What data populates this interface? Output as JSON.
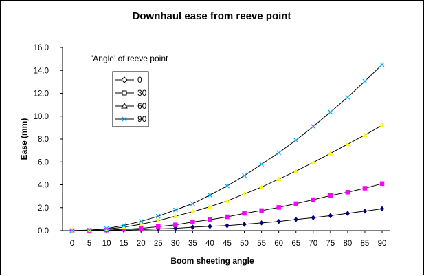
{
  "chart_data": {
    "type": "line",
    "title": "Downhaul ease from reeve point",
    "xlabel": "Boom sheeting angle",
    "ylabel": "Ease (mm)",
    "xlim": [
      0,
      90
    ],
    "ylim": [
      0,
      16
    ],
    "x_ticks": [
      "0",
      "5",
      "10",
      "15",
      "20",
      "25",
      "30",
      "35",
      "40",
      "45",
      "50",
      "55",
      "60",
      "65",
      "70",
      "75",
      "80",
      "85",
      "90"
    ],
    "y_ticks": [
      "0.0",
      "2.0",
      "4.0",
      "6.0",
      "8.0",
      "10.0",
      "12.0",
      "14.0",
      "16.0"
    ],
    "grid": "none",
    "legend": {
      "title": "'Angle' of reeve point",
      "placement": "upper-left",
      "entries": [
        "0",
        "30",
        "60",
        "90"
      ]
    },
    "x": [
      0,
      5,
      10,
      15,
      20,
      25,
      30,
      35,
      40,
      45,
      50,
      55,
      60,
      65,
      70,
      75,
      80,
      85,
      90
    ],
    "series": [
      {
        "name": "0",
        "line_color": "#000000",
        "marker": "diamond",
        "marker_color": "#000080",
        "values": [
          0.0,
          0.0,
          0.02,
          0.05,
          0.09,
          0.15,
          0.2,
          0.3,
          0.37,
          0.43,
          0.55,
          0.67,
          0.8,
          0.97,
          1.13,
          1.3,
          1.5,
          1.7,
          1.9
        ]
      },
      {
        "name": "30",
        "line_color": "#000000",
        "marker": "square",
        "marker_color": "#ff00ff",
        "values": [
          0.0,
          0.02,
          0.05,
          0.12,
          0.2,
          0.35,
          0.5,
          0.75,
          0.95,
          1.2,
          1.5,
          1.75,
          2.02,
          2.35,
          2.7,
          3.05,
          3.35,
          3.7,
          4.1
        ]
      },
      {
        "name": "60",
        "line_color": "#000000",
        "marker": "triangle",
        "marker_color": "#ffff00",
        "values": [
          0.0,
          0.04,
          0.13,
          0.3,
          0.55,
          0.87,
          1.25,
          1.65,
          2.08,
          2.6,
          3.2,
          3.8,
          4.5,
          5.2,
          5.95,
          6.75,
          7.55,
          8.35,
          9.2
        ]
      },
      {
        "name": "90",
        "line_color": "#000000",
        "marker": "x",
        "marker_color": "#00aaff",
        "values": [
          0.0,
          0.05,
          0.18,
          0.45,
          0.8,
          1.25,
          1.8,
          2.35,
          3.1,
          3.9,
          4.8,
          5.8,
          6.8,
          7.9,
          9.1,
          10.35,
          11.65,
          13.05,
          14.5
        ]
      }
    ]
  }
}
